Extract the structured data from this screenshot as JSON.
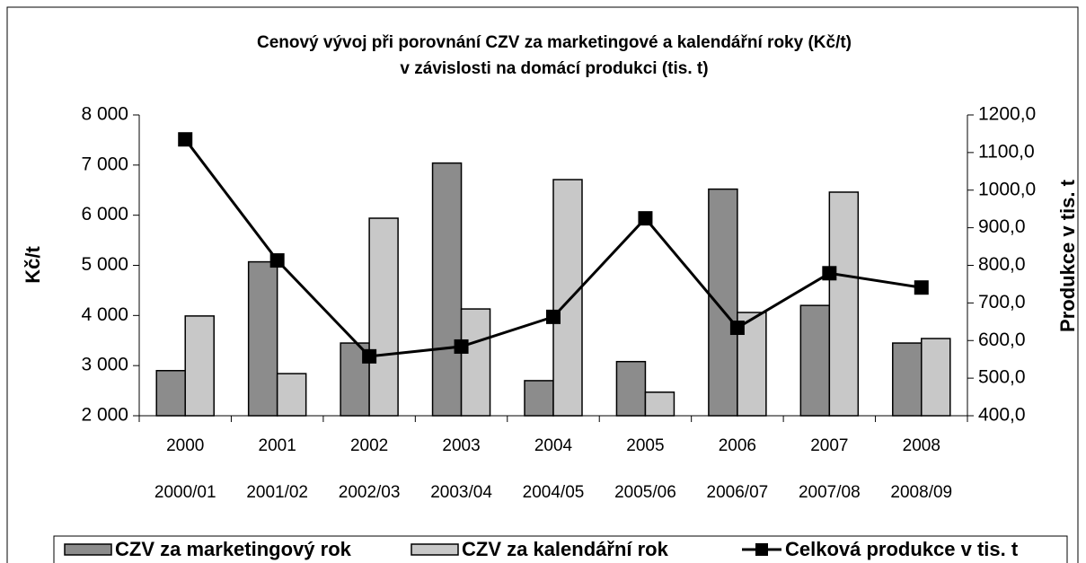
{
  "chart_data": {
    "type": "bar",
    "title": "Cenový vývoj při porovnání CZV za marketingové a kalendářní roky (Kč/t)",
    "subtitle": "v závislosti na domácí produkci (tis. t)",
    "y_label": "Kč/t",
    "y2_label": "Produkce v tis. t",
    "categories": [
      "2000",
      "2001",
      "2002",
      "2003",
      "2004",
      "2005",
      "2006",
      "2007",
      "2008"
    ],
    "secondary_categories": [
      "2000/01",
      "2001/02",
      "2002/03",
      "2003/04",
      "2004/05",
      "2005/06",
      "2006/07",
      "2007/08",
      "2008/09"
    ],
    "series": [
      {
        "name": "CZV za marketingový rok",
        "type": "bar",
        "color": "#8c8c8c",
        "values": [
          2900,
          5070,
          3450,
          7040,
          2700,
          3080,
          6520,
          4200,
          3450
        ]
      },
      {
        "name": "CZV za kalendářní rok",
        "type": "bar",
        "color": "#c8c8c8",
        "values": [
          3990,
          2840,
          5940,
          4130,
          6710,
          2470,
          4060,
          6460,
          3540
        ]
      },
      {
        "name": "Celková produkce v tis. t",
        "type": "line",
        "axis": "y2",
        "color": "#000000",
        "values": [
          1135,
          813,
          558,
          584,
          663,
          925,
          634,
          779,
          741
        ]
      }
    ],
    "ylim": [
      2000,
      8000
    ],
    "yticks": [
      {
        "value": 2000,
        "label": "2 000"
      },
      {
        "value": 3000,
        "label": "3 000"
      },
      {
        "value": 4000,
        "label": "4 000"
      },
      {
        "value": 5000,
        "label": "5 000"
      },
      {
        "value": 6000,
        "label": "6 000"
      },
      {
        "value": 7000,
        "label": "7 000"
      },
      {
        "value": 8000,
        "label": "8 000"
      }
    ],
    "y2lim": [
      400,
      1200
    ],
    "y2ticks": [
      {
        "value": 400,
        "label": "400,0"
      },
      {
        "value": 500,
        "label": "500,0"
      },
      {
        "value": 600,
        "label": "600,0"
      },
      {
        "value": 700,
        "label": "700,0"
      },
      {
        "value": 800,
        "label": "800,0"
      },
      {
        "value": 900,
        "label": "900,0"
      },
      {
        "value": 1000,
        "label": "1000,0"
      },
      {
        "value": 1100,
        "label": "1100,0"
      },
      {
        "value": 1200,
        "label": "1200,0"
      }
    ],
    "grid": false,
    "legend": "bottom"
  }
}
